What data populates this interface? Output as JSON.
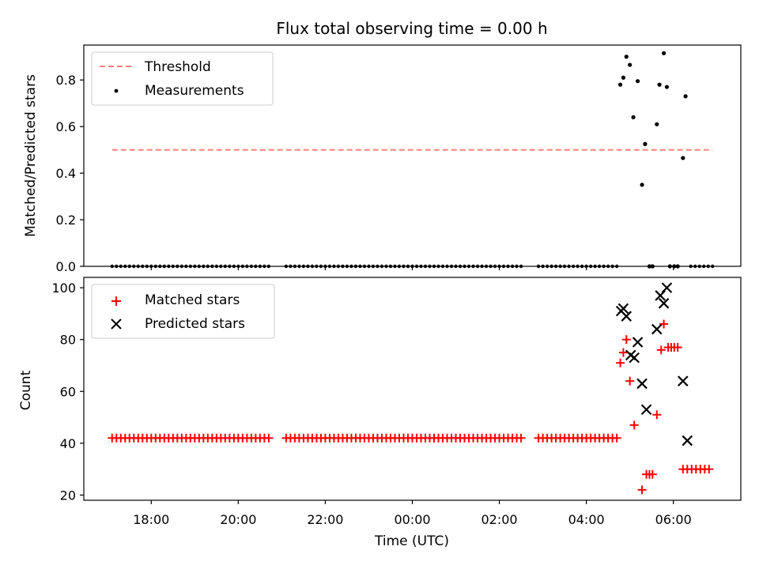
{
  "chart_data": [
    {
      "type": "scatter",
      "title": "Flux total observing time = 0.00 h",
      "xlabel": "",
      "ylabel": "Matched/Predicted stars",
      "ylim": [
        0,
        0.95
      ],
      "yticks": [
        "0.0",
        "0.2",
        "0.4",
        "0.6",
        "0.8"
      ],
      "xlim_hours_since_midnight": [
        -7.55,
        7.55
      ],
      "legend": {
        "location": "upper left",
        "entries": [
          "Threshold",
          "Measurements"
        ]
      },
      "threshold": {
        "name": "Threshold",
        "y": 0.5,
        "x_start": -6.9,
        "x_end": 6.9,
        "color": "#ff7f7f",
        "style": "dashed"
      },
      "zero_runs": [
        {
          "from": -6.9,
          "to": -3.25,
          "step": 0.1
        },
        {
          "from": -2.9,
          "to": 2.55,
          "step": 0.1
        },
        {
          "from": 2.9,
          "to": 4.75,
          "step": 0.1
        },
        {
          "from": 6.4,
          "to": 6.9,
          "step": 0.1
        }
      ],
      "measurements": [
        [
          4.78,
          0.78
        ],
        [
          4.85,
          0.81
        ],
        [
          4.92,
          0.9
        ],
        [
          5.0,
          0.865
        ],
        [
          5.08,
          0.64
        ],
        [
          5.18,
          0.795
        ],
        [
          5.28,
          0.35
        ],
        [
          5.35,
          0.525
        ],
        [
          5.62,
          0.61
        ],
        [
          5.68,
          0.78
        ],
        [
          5.78,
          0.915
        ],
        [
          5.85,
          0.77
        ],
        [
          6.22,
          0.465
        ],
        [
          6.28,
          0.73
        ],
        [
          5.45,
          0.0
        ],
        [
          5.52,
          0.0
        ],
        [
          5.92,
          0.0
        ],
        [
          6.02,
          0.0
        ],
        [
          6.1,
          0.0
        ]
      ],
      "measurement_color": "#000000"
    },
    {
      "type": "scatter",
      "title": "",
      "xlabel": "Time (UTC)",
      "ylabel": "Count",
      "ylim": [
        18,
        104
      ],
      "yticks": [
        "20",
        "40",
        "60",
        "80",
        "100"
      ],
      "xticks": [
        "18:00",
        "20:00",
        "22:00",
        "00:00",
        "02:00",
        "04:00",
        "06:00"
      ],
      "legend": {
        "location": "upper left",
        "entries": [
          "Matched stars",
          "Predicted stars"
        ]
      },
      "matched_runs": [
        {
          "from": -6.9,
          "to": -3.25,
          "step": 0.1,
          "value": 42
        },
        {
          "from": -2.9,
          "to": 2.55,
          "step": 0.1,
          "value": 42
        },
        {
          "from": 2.9,
          "to": 4.75,
          "step": 0.1,
          "value": 42
        },
        {
          "from": 6.22,
          "to": 6.9,
          "step": 0.1,
          "value": 30
        }
      ],
      "matched_points": [
        [
          4.78,
          71
        ],
        [
          4.85,
          75
        ],
        [
          4.92,
          80
        ],
        [
          5.0,
          64
        ],
        [
          5.1,
          47
        ],
        [
          5.28,
          22
        ],
        [
          5.38,
          28
        ],
        [
          5.45,
          28
        ],
        [
          5.52,
          28
        ],
        [
          5.62,
          51
        ],
        [
          5.72,
          76
        ],
        [
          5.78,
          86
        ],
        [
          5.88,
          77
        ],
        [
          5.95,
          77
        ],
        [
          6.02,
          77
        ],
        [
          6.1,
          77
        ]
      ],
      "predicted_points": [
        [
          4.8,
          91
        ],
        [
          4.85,
          92
        ],
        [
          4.92,
          89
        ],
        [
          5.02,
          74
        ],
        [
          5.1,
          73
        ],
        [
          5.18,
          79
        ],
        [
          5.28,
          63
        ],
        [
          5.38,
          53
        ],
        [
          5.62,
          84
        ],
        [
          5.7,
          97
        ],
        [
          5.78,
          94
        ],
        [
          5.85,
          100
        ],
        [
          6.22,
          64
        ],
        [
          6.32,
          41
        ]
      ],
      "matched_color": "#ff0000",
      "predicted_color": "#000000"
    }
  ]
}
